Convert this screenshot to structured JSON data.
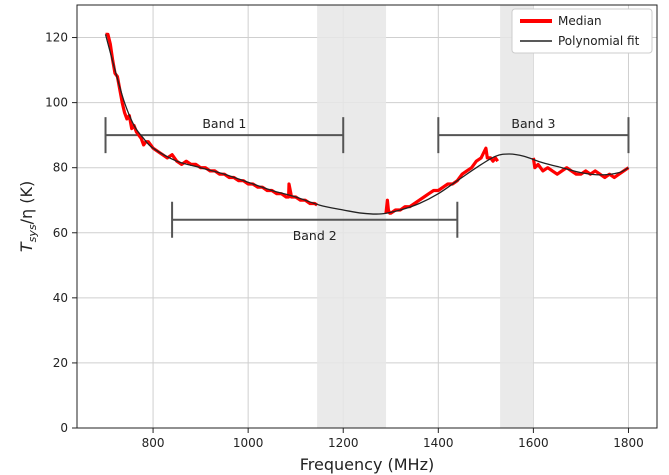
{
  "chart_data": {
    "type": "line",
    "xlabel": "Frequency (MHz)",
    "ylabel_main": "T",
    "ylabel_sub": "sys",
    "ylabel_rest": "/η (K)",
    "xlim": [
      640,
      1860
    ],
    "ylim": [
      0,
      130
    ],
    "xticks": [
      800,
      1000,
      1200,
      1400,
      1600,
      1800
    ],
    "yticks": [
      0,
      20,
      40,
      60,
      80,
      100,
      120
    ],
    "grid": true,
    "legend_position": "top-right",
    "colors": {
      "median": "#ff0000",
      "fit": "#222222",
      "shade": "#e6e6e6",
      "band": "#555555"
    },
    "shaded_regions": [
      {
        "x0": 1145,
        "x1": 1290
      },
      {
        "x0": 1530,
        "x1": 1600
      }
    ],
    "bands": [
      {
        "label": "Band 1",
        "x0": 700,
        "x1": 1200,
        "y": 90
      },
      {
        "label": "Band 2",
        "x0": 840,
        "x1": 1440,
        "y": 64
      },
      {
        "label": "Band 3",
        "x0": 1400,
        "x1": 1800,
        "y": 90
      }
    ],
    "series": [
      {
        "name": "Median",
        "segments": [
          {
            "x": [
              700,
              705,
              710,
              715,
              720,
              725,
              730,
              735,
              740,
              745,
              750,
              755,
              760,
              765,
              770,
              775,
              780,
              785,
              790,
              800,
              810,
              820,
              830,
              840,
              850,
              860,
              870,
              880,
              890,
              900,
              910,
              920,
              930,
              940,
              950,
              960,
              970,
              980,
              990,
              1000,
              1010,
              1020,
              1030,
              1040,
              1050,
              1060,
              1070,
              1080,
              1085,
              1086,
              1090,
              1091,
              1095,
              1100,
              1110,
              1120,
              1130,
              1140,
              1145
            ],
            "y": [
              121,
              121,
              118,
              113,
              109,
              108,
              104,
              100,
              97,
              95,
              96,
              92,
              93,
              91,
              90,
              89,
              87,
              88,
              88,
              86,
              85,
              84,
              83,
              84,
              82,
              81,
              82,
              81,
              81,
              80,
              80,
              79,
              79,
              78,
              78,
              77,
              77,
              76,
              76,
              75,
              75,
              74,
              74,
              73,
              73,
              72,
              72,
              71,
              71,
              75,
              72,
              71,
              71,
              71,
              70,
              70,
              69,
              69,
              68.5
            ]
          },
          {
            "x": [
              1290,
              1293,
              1295,
              1298,
              1300,
              1310,
              1320,
              1330,
              1340,
              1350,
              1360,
              1370,
              1380,
              1390,
              1400,
              1410,
              1420,
              1430,
              1440,
              1450,
              1460,
              1470,
              1480,
              1490,
              1500,
              1503,
              1510,
              1515,
              1520,
              1525
            ],
            "y": [
              66,
              70,
              67,
              66,
              66,
              67,
              67,
              68,
              68,
              69,
              70,
              71,
              72,
              73,
              73,
              74,
              75,
              75,
              76,
              78,
              79,
              80,
              82,
              83,
              86,
              83,
              83,
              82,
              83,
              82
            ]
          },
          {
            "x": [
              1600,
              1603,
              1610,
              1615,
              1620,
              1630,
              1640,
              1650,
              1660,
              1670,
              1680,
              1690,
              1700,
              1710,
              1720,
              1730,
              1740,
              1750,
              1760,
              1770,
              1780,
              1790,
              1800
            ],
            "y": [
              83,
              80,
              81,
              80,
              79,
              80,
              79,
              78,
              79,
              80,
              79,
              78,
              78,
              79,
              78,
              79,
              78,
              77,
              78,
              77,
              78,
              79,
              80
            ]
          }
        ]
      },
      {
        "name": "Polynomial fit",
        "x": [
          700,
          720,
          740,
          760,
          780,
          800,
          850,
          900,
          950,
          1000,
          1050,
          1100,
          1150,
          1200,
          1240,
          1280,
          1320,
          1360,
          1400,
          1440,
          1480,
          1520,
          1550,
          1580,
          1620,
          1660,
          1700,
          1740,
          1780,
          1800
        ],
        "y": [
          121,
          110,
          100,
          93,
          89,
          86,
          82,
          80,
          78,
          75.5,
          73,
          71,
          68.5,
          67,
          66,
          65.8,
          67,
          69,
          72,
          76,
          80,
          83.5,
          84.2,
          83.5,
          81.5,
          80,
          78.5,
          77.8,
          78.5,
          80
        ]
      }
    ]
  }
}
